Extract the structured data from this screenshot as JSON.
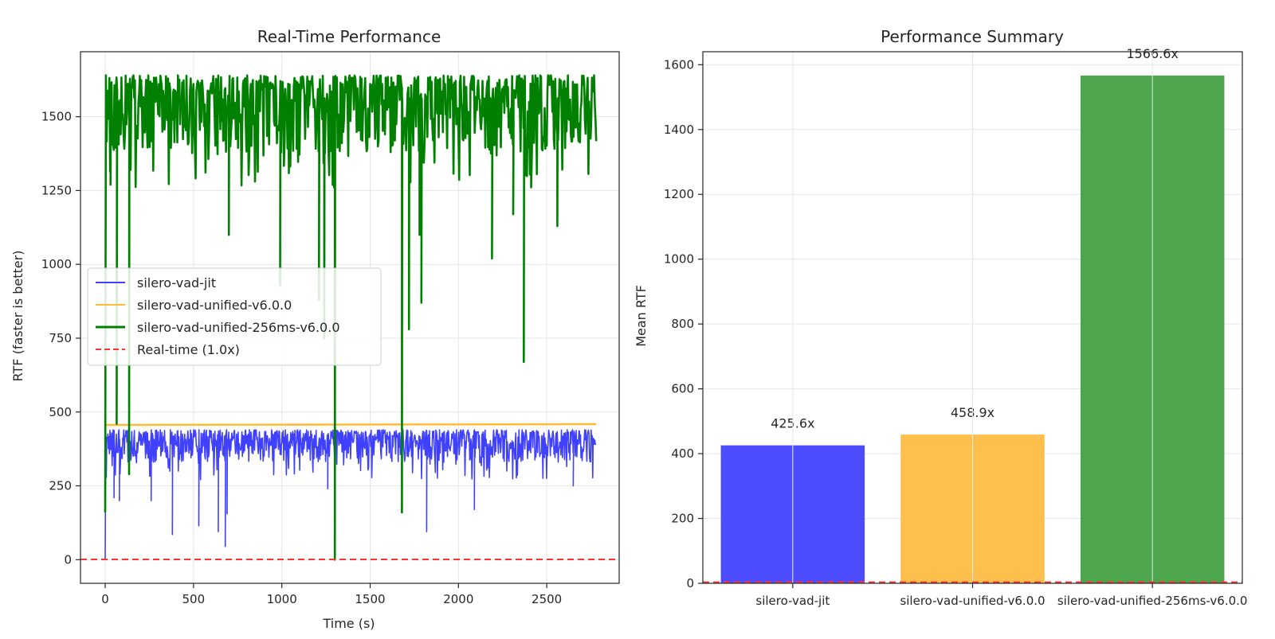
{
  "chart_data": [
    {
      "type": "line",
      "title": "Real-Time Performance",
      "xlabel": "Time (s)",
      "ylabel": "RTF (faster is better)",
      "xlim": [
        -140,
        2910
      ],
      "ylim": [
        -80,
        1720
      ],
      "xticks": [
        0,
        500,
        1000,
        1500,
        2000,
        2500
      ],
      "yticks": [
        0,
        250,
        500,
        750,
        1000,
        1250,
        1500
      ],
      "grid": true,
      "legend_position": "center-left",
      "x_range": [
        0,
        2780
      ],
      "series": [
        {
          "name": "silero-vad-jit",
          "color": "#4040ff",
          "typical_range": [
            330,
            440
          ],
          "mean": 425.6,
          "start_value": 0,
          "dips": [
            [
              50,
              210
            ],
            [
              80,
              200
            ],
            [
              260,
              200
            ],
            [
              380,
              85
            ],
            [
              530,
              115
            ],
            [
              640,
              95
            ],
            [
              680,
              45
            ],
            [
              690,
              155
            ],
            [
              1260,
              240
            ],
            [
              1820,
              95
            ],
            [
              2090,
              170
            ],
            [
              2650,
              250
            ]
          ]
        },
        {
          "name": "silero-vad-unified-v6.0.0",
          "color": "#ffbb33",
          "typical_range": [
            458,
            460
          ],
          "mean": 458.9
        },
        {
          "name": "silero-vad-unified-256ms-v6.0.0",
          "color": "#008000",
          "typical_range": [
            1380,
            1640
          ],
          "mean": 1566.6,
          "start_value": 160,
          "dips": [
            [
              0,
              160
            ],
            [
              30,
              1270
            ],
            [
              65,
              460
            ],
            [
              135,
              290
            ],
            [
              700,
              1100
            ],
            [
              990,
              930
            ],
            [
              1210,
              880
            ],
            [
              1240,
              750
            ],
            [
              1300,
              0
            ],
            [
              1680,
              160
            ],
            [
              1720,
              780
            ],
            [
              1780,
              1100
            ],
            [
              1790,
              870
            ],
            [
              2190,
              1020
            ],
            [
              2310,
              1170
            ],
            [
              2370,
              670
            ],
            [
              2560,
              1130
            ]
          ]
        },
        {
          "name": "Real-time (1.0x)",
          "color": "#ff3333",
          "style": "dashed",
          "value": 1.0
        }
      ]
    },
    {
      "type": "bar",
      "title": "Performance Summary",
      "xlabel": "",
      "ylabel": "Mean RTF",
      "ylim": [
        0,
        1640
      ],
      "yticks": [
        0,
        200,
        400,
        600,
        800,
        1000,
        1200,
        1400,
        1600
      ],
      "grid": true,
      "categories": [
        "silero-vad-jit",
        "silero-vad-unified-v6.0.0",
        "silero-vad-unified-256ms-v6.0.0"
      ],
      "values": [
        425.6,
        458.9,
        1566.6
      ],
      "value_labels": [
        "425.6x",
        "458.9x",
        "1566.6x"
      ],
      "colors": [
        "#4d4dff",
        "#ffbf4d",
        "#4da64d"
      ],
      "reference_line": {
        "value": 1.0,
        "color": "#ff3333",
        "style": "dashed"
      }
    }
  ]
}
